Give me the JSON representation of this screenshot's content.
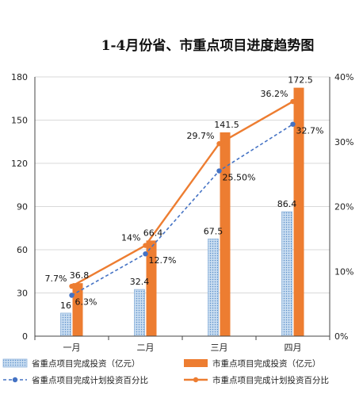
{
  "chart_data": {
    "type": "bar",
    "title": "1-4月份省、市重点项目进度趋势图",
    "categories": [
      "一月",
      "二月",
      "三月",
      "四月"
    ],
    "ylim": [
      0,
      180
    ],
    "yticks": [
      0,
      30,
      60,
      90,
      120,
      150,
      180
    ],
    "y2lim": [
      0,
      40
    ],
    "y2ticks": [
      "0%",
      "10%",
      "20%",
      "30%",
      "40%"
    ],
    "y2tick_values": [
      0,
      10,
      20,
      30,
      40
    ],
    "grid": true,
    "legend_position": "bottom",
    "series": [
      {
        "name": "省重点项目完成投资（亿元）",
        "kind": "bar",
        "axis": "left",
        "color": "#9dc3e6",
        "values": [
          16,
          32.4,
          67.5,
          86.4
        ],
        "labels": [
          "16",
          "32.4",
          "67.5",
          "86.4"
        ]
      },
      {
        "name": "市重点项目完成投资（亿元）",
        "kind": "bar",
        "axis": "left",
        "color": "#ed7d31",
        "values": [
          36.8,
          66.4,
          141.5,
          172.5
        ],
        "labels": [
          "36.8",
          "66.4",
          "141.5",
          "172.5"
        ]
      },
      {
        "name": "省重点项目完成计划投资百分比",
        "kind": "line",
        "axis": "right",
        "color": "#4472c4",
        "dashed": true,
        "values": [
          6.3,
          12.7,
          25.5,
          32.7
        ],
        "labels": [
          "6.3%",
          "12.7%",
          "25.50%",
          "32.7%"
        ]
      },
      {
        "name": "市重点项目完成计划投资百分比",
        "kind": "line",
        "axis": "right",
        "color": "#ed7d31",
        "dashed": false,
        "values": [
          7.7,
          14,
          29.7,
          36.2
        ],
        "labels": [
          "7.7%",
          "14%",
          "29.7%",
          "36.2%"
        ]
      }
    ]
  }
}
